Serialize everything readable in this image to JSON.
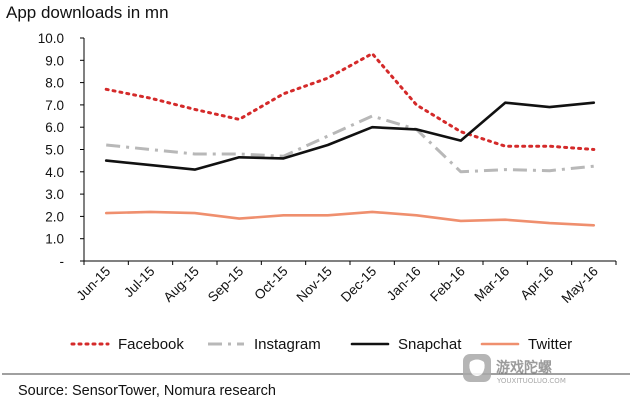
{
  "chart_data": {
    "type": "line",
    "title": "App downloads in mn",
    "categories": [
      "Jun-15",
      "Jul-15",
      "Aug-15",
      "Sep-15",
      "Oct-15",
      "Nov-15",
      "Dec-15",
      "Jan-16",
      "Feb-16",
      "Mar-16",
      "Apr-16",
      "May-16"
    ],
    "y_ticks": [
      "-",
      "1.0",
      "2.0",
      "3.0",
      "4.0",
      "5.0",
      "6.0",
      "7.0",
      "8.0",
      "9.0",
      "10.0"
    ],
    "ylim": [
      0,
      10
    ],
    "grid": false,
    "legend_position": "bottom",
    "series": [
      {
        "name": "Facebook",
        "color": "#d42a2a",
        "style": "dotted",
        "values": [
          7.7,
          7.3,
          6.8,
          6.35,
          7.5,
          8.2,
          9.3,
          7.0,
          5.8,
          5.15,
          5.15,
          5.0
        ]
      },
      {
        "name": "Instagram",
        "color": "#b8b8b8",
        "style": "dashdot",
        "values": [
          5.2,
          5.0,
          4.8,
          4.8,
          4.7,
          5.6,
          6.5,
          5.9,
          4.0,
          4.1,
          4.05,
          4.25
        ]
      },
      {
        "name": "Snapchat",
        "color": "#111111",
        "style": "solid",
        "values": [
          4.5,
          4.3,
          4.1,
          4.65,
          4.6,
          5.2,
          6.0,
          5.9,
          5.4,
          7.1,
          6.9,
          7.1
        ]
      },
      {
        "name": "Twitter",
        "color": "#ef8f6e",
        "style": "solid",
        "values": [
          2.15,
          2.2,
          2.15,
          1.9,
          2.05,
          2.05,
          2.2,
          2.05,
          1.8,
          1.85,
          1.7,
          1.6
        ]
      }
    ]
  },
  "source": "Source: SensorTower, Nomura research",
  "watermark": {
    "text": "游戏陀螺",
    "sub": "YOUXITUOLUO.COM"
  }
}
